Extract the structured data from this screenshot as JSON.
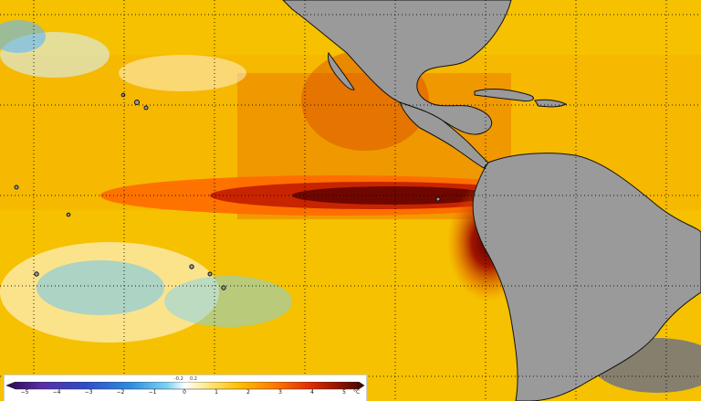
{
  "map": {
    "region": "Eastern Pacific / Americas sea-surface temperature anomaly"
  },
  "legend": {
    "ticks": [
      "−5",
      "−4",
      "−3",
      "−2",
      "−1",
      "0",
      "1",
      "2",
      "3",
      "4",
      "5"
    ],
    "small_labels": [
      "-0.2",
      "0.2"
    ],
    "unit": "°C",
    "colors": [
      "#2b0a4f",
      "#5a2ea6",
      "#2f4cc8",
      "#2f8fe0",
      "#7ed3f4",
      "#ffffff",
      "#ffe98a",
      "#ffbf00",
      "#ff7a00",
      "#e02a00",
      "#7a0f00",
      "#3a0600"
    ]
  }
}
